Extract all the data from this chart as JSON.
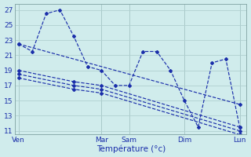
{
  "title": "Température (°c)",
  "bg_color": "#d0ecec",
  "grid_color": "#b0d0d0",
  "line_color": "#1a2eaa",
  "ylabel_color": "#1a2eaa",
  "yticks": [
    11,
    13,
    15,
    17,
    19,
    21,
    23,
    25,
    27
  ],
  "x_day_labels": [
    "Ven",
    "Mar",
    "Sam",
    "Dim",
    "Lun"
  ],
  "x_day_positions": [
    0,
    12,
    16,
    24,
    32
  ],
  "xlim": [
    -0.5,
    33
  ],
  "ylim": [
    10.5,
    27.8
  ],
  "main_line_x": [
    0,
    2,
    4,
    6,
    8,
    10,
    12,
    14,
    16,
    18,
    20,
    22,
    24,
    26,
    28,
    30,
    32
  ],
  "main_line_y": [
    22.5,
    21.5,
    26.5,
    27.0,
    23.5,
    19.5,
    19.0,
    17.0,
    17.0,
    21.5,
    21.5,
    19.0,
    15.0,
    11.5,
    20.0,
    20.5,
    11.5
  ],
  "trend1_x": [
    0,
    32
  ],
  "trend1_y": [
    22.5,
    14.5
  ],
  "trend2_x": [
    0,
    8,
    12,
    32
  ],
  "trend2_y": [
    19.0,
    17.5,
    17.0,
    11.5
  ],
  "trend3_x": [
    0,
    8,
    12,
    32
  ],
  "trend3_y": [
    18.5,
    17.0,
    16.5,
    11.0
  ],
  "trend4_x": [
    0,
    8,
    12,
    32
  ],
  "trend4_y": [
    18.0,
    16.5,
    16.0,
    10.5
  ]
}
